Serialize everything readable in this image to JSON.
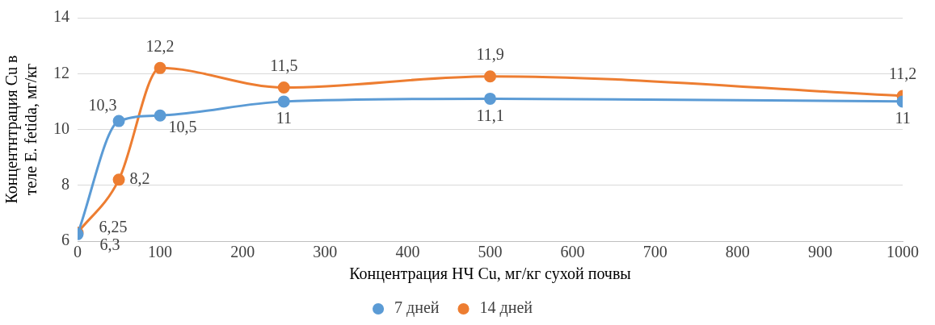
{
  "chart_data": {
    "type": "line",
    "xlabel": "Концентрация НЧ Cu, мг/кг сухой почвы",
    "ylabel": "Концентнтрация Cu в теле E. fetida, мг/кг",
    "x": [
      0,
      50,
      100,
      250,
      500,
      1000
    ],
    "series": [
      {
        "name": "7 дней",
        "color": "#5b9bd5",
        "values": [
          6.25,
          10.3,
          10.5,
          11,
          11.1,
          11
        ],
        "value_labels": [
          "6,25",
          "10,3",
          "10,5",
          "11",
          "11,1",
          "11"
        ]
      },
      {
        "name": "14 дней",
        "color": "#ed7d31",
        "values": [
          6.3,
          8.2,
          12.2,
          11.5,
          11.9,
          11.2
        ],
        "value_labels": [
          "6,3",
          "8,2",
          "12,2",
          "11,5",
          "11,9",
          "11,2"
        ]
      }
    ],
    "xlim": [
      0,
      1000
    ],
    "xticks": [
      0,
      100,
      200,
      300,
      400,
      500,
      600,
      700,
      800,
      900,
      1000
    ],
    "ylim": [
      6,
      14
    ],
    "yticks": [
      6,
      8,
      10,
      12,
      14
    ],
    "grid": "y",
    "legend": "bottom",
    "marker": "circle",
    "line_style": "solid"
  }
}
